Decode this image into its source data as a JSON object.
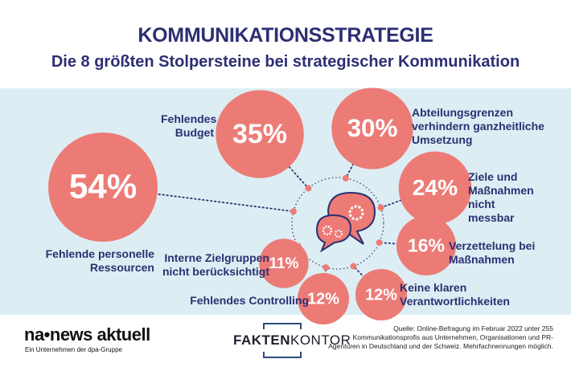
{
  "header": {
    "title": "KOMMUNIKATIONSSTRATEGIE",
    "subtitle": "Die 8 größten Stolpersteine bei strategischer Kommunikation"
  },
  "chart_data": {
    "type": "bubble",
    "title": "Die 8 größten Stolpersteine bei strategischer Kommunikation",
    "unit": "%",
    "items": [
      {
        "label": "Fehlende personelle Ressourcen",
        "value": 54,
        "display": "54%"
      },
      {
        "label": "Fehlendes Budget",
        "value": 35,
        "display": "35%"
      },
      {
        "label": "Abteilungsgrenzen verhindern ganzheitliche Umsetzung",
        "value": 30,
        "display": "30%"
      },
      {
        "label": "Ziele und Maßnahmen nicht messbar",
        "value": 24,
        "display": "24%"
      },
      {
        "label": "Verzettelung bei Maßnahmen",
        "value": 16,
        "display": "16%"
      },
      {
        "label": "Keine klaren Verantwortlichkeiten",
        "value": 12,
        "display": "12%"
      },
      {
        "label": "Fehlendes Controlling",
        "value": 12,
        "display": "12%"
      },
      {
        "label": "Interne Zielgruppen nicht berücksichtigt",
        "value": 11,
        "display": "11%"
      }
    ],
    "colors": {
      "bubble": "#ec7b76",
      "text": "#2d2f73",
      "band": "#dceef3"
    }
  },
  "footer": {
    "logo1": "na•news aktuell",
    "logo1_sub": "Ein Unternehmen der dpa-Gruppe",
    "logo2_bold": "FAKTEN",
    "logo2_light": "KONTOR",
    "source": "Quelle: Online-Befragung im Februar 2022 unter 255 Kommunikationsprofis aus Unternehmen, Organisationen und PR-Agenturen in Deutschland und der Schweiz. Mehrfachnennungen möglich."
  }
}
